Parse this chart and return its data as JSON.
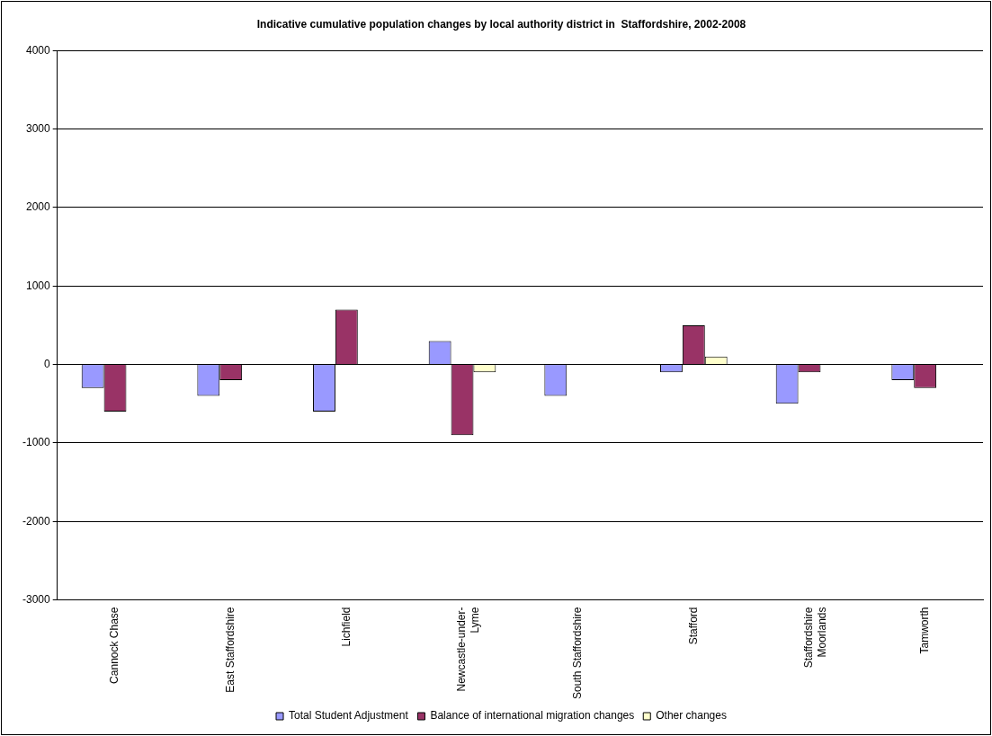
{
  "chart_data": {
    "type": "bar",
    "title": "Indicative cumulative population changes by local authority district in  Staffordshire, 2002-2008",
    "categories": [
      "Cannock Chase",
      "East Staffordshire",
      "Lichfield",
      "Newcastle-under-Lyme",
      "South Staffordshire",
      "Stafford",
      "Staffordshire Moorlands",
      "Tamworth"
    ],
    "series": [
      {
        "name": "Total Student Adjustment",
        "color": "#9999ff",
        "values": [
          -300,
          -400,
          -600,
          300,
          -400,
          -100,
          -500,
          -200
        ]
      },
      {
        "name": "Balance of international migration changes",
        "color": "#993366",
        "values": [
          -600,
          -200,
          700,
          -900,
          0,
          500,
          -100,
          -300
        ]
      },
      {
        "name": "Other changes",
        "color": "#ffffcc",
        "values": [
          0,
          0,
          0,
          -100,
          0,
          100,
          0,
          0
        ]
      }
    ],
    "ylim": [
      -3000,
      4000
    ],
    "yticks": [
      -3000,
      -2000,
      -1000,
      0,
      1000,
      2000,
      3000,
      4000
    ],
    "grid": "y",
    "legend": "bottom"
  }
}
